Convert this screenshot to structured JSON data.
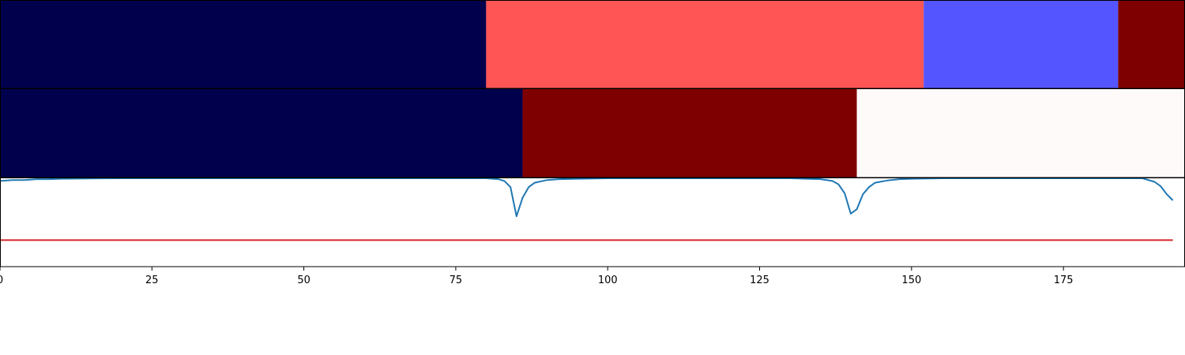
{
  "chart_data": {
    "type": "segmentation-and-line",
    "xlim": [
      0,
      195
    ],
    "x_ticks": [
      0,
      25,
      50,
      75,
      100,
      125,
      150,
      175
    ],
    "x_tick_labels": [
      "0",
      "25",
      "50",
      "75",
      "100",
      "125",
      "150",
      "175"
    ],
    "segment_rows": [
      {
        "segments": [
          {
            "start": 0,
            "end": 80,
            "color": "#00004c"
          },
          {
            "start": 80,
            "end": 152,
            "color": "#ff5555"
          },
          {
            "start": 152,
            "end": 184,
            "color": "#5555ff"
          },
          {
            "start": 184,
            "end": 195,
            "color": "#7f0000"
          }
        ]
      },
      {
        "segments": [
          {
            "start": 0,
            "end": 86,
            "color": "#00004c"
          },
          {
            "start": 86,
            "end": 141,
            "color": "#7f0000"
          },
          {
            "start": 141,
            "end": 195,
            "color": "#fffafa"
          }
        ]
      }
    ],
    "line_panel": {
      "ylim": [
        0,
        1
      ],
      "threshold": 0.3,
      "threshold_color": "#d62728",
      "line_color": "#1f77b4",
      "series": {
        "x": [
          0,
          2,
          4,
          6,
          8,
          10,
          15,
          20,
          30,
          40,
          50,
          60,
          70,
          75,
          78,
          80,
          82,
          83,
          84,
          85,
          86,
          87,
          88,
          90,
          92,
          95,
          100,
          110,
          120,
          130,
          135,
          137,
          138,
          139,
          140,
          141,
          142,
          143,
          144,
          146,
          148,
          150,
          155,
          160,
          170,
          180,
          185,
          188,
          190,
          191,
          192,
          193
        ],
        "y": [
          0.97,
          0.98,
          0.98,
          0.99,
          0.99,
          0.995,
          0.998,
          1.0,
          1.0,
          1.0,
          1.0,
          1.0,
          1.0,
          1.0,
          1.0,
          1.0,
          0.99,
          0.97,
          0.9,
          0.57,
          0.78,
          0.9,
          0.95,
          0.98,
          0.99,
          0.995,
          1.0,
          1.0,
          1.0,
          1.0,
          0.99,
          0.97,
          0.93,
          0.83,
          0.6,
          0.65,
          0.82,
          0.9,
          0.95,
          0.975,
          0.99,
          0.995,
          1.0,
          1.0,
          1.0,
          1.0,
          1.0,
          1.0,
          0.96,
          0.91,
          0.82,
          0.75
        ]
      }
    }
  }
}
